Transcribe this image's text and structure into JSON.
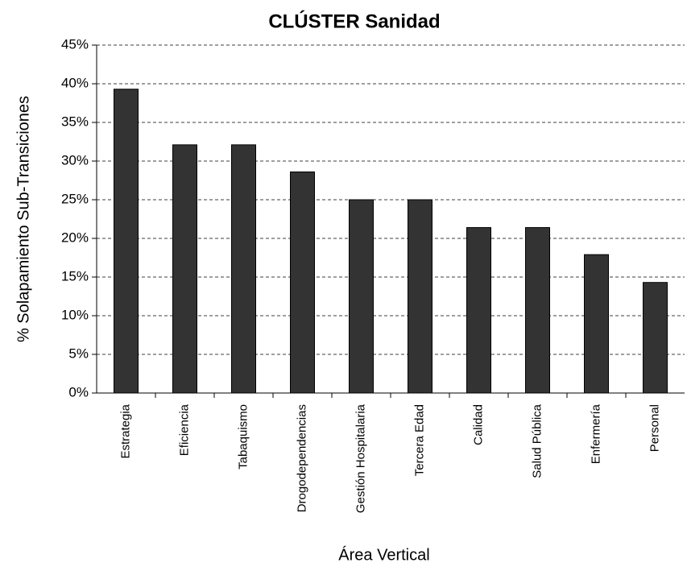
{
  "chart_data": {
    "type": "bar",
    "title": "CLÚSTER Sanidad",
    "x_label": "Área Vertical",
    "y_label": "% Solapamiento Sub-Transiciones",
    "categories": [
      "Estrategia",
      "Eficiencia",
      "Tabaquismo",
      "Drogodependencias",
      "Gestión Hospitalaria",
      "Tercera Edad",
      "Calidad",
      "Salud Pública",
      "Enfermería",
      "Personal"
    ],
    "values": [
      39.3,
      32.1,
      32.1,
      28.6,
      25,
      25,
      21.4,
      21.4,
      17.9,
      14.3
    ],
    "color": "#333333",
    "ylim": [
      0,
      45
    ],
    "yticks": [
      {
        "value": 0,
        "label": "0%"
      },
      {
        "value": 5,
        "label": "5%"
      },
      {
        "value": 10,
        "label": "10%"
      },
      {
        "value": 15,
        "label": "15%"
      },
      {
        "value": 20,
        "label": "20%"
      },
      {
        "value": 25,
        "label": "25%"
      },
      {
        "value": 30,
        "label": "30%"
      },
      {
        "value": 35,
        "label": "35%"
      },
      {
        "value": 40,
        "label": "40%"
      },
      {
        "value": 45,
        "label": "45%"
      }
    ],
    "grid": true
  }
}
